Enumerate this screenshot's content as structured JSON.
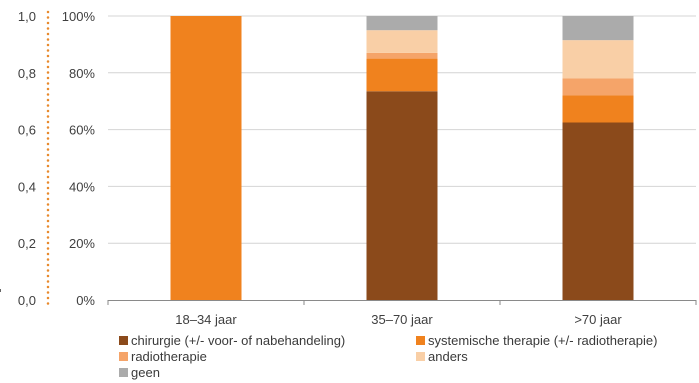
{
  "chart_data": {
    "type": "bar",
    "stacked": true,
    "title": "",
    "xlabel": "",
    "ylabel": "",
    "categories": [
      "18–34 jaar",
      "35–70 jaar",
      ">70 jaar"
    ],
    "series": [
      {
        "name": "chirurgie (+/- voor- of nabehandeling)",
        "color": "#8B4A1B",
        "values": [
          0,
          73.5,
          62.5
        ]
      },
      {
        "name": "systemische therapie (+/- radiotherapie)",
        "color": "#F0821E",
        "values": [
          100,
          11.5,
          9.5
        ]
      },
      {
        "name": "radiotherapie",
        "color": "#F5A469",
        "values": [
          0,
          2,
          6
        ]
      },
      {
        "name": "anders",
        "color": "#F9CFA6",
        "values": [
          0,
          8,
          13.5
        ]
      },
      {
        "name": "geen",
        "color": "#ABABAB",
        "values": [
          0,
          5,
          8.5
        ]
      }
    ],
    "ylim": [
      0,
      100
    ],
    "y_ticks": [
      "0%",
      "20%",
      "40%",
      "60%",
      "80%",
      "100%"
    ],
    "left_axis_ticks": [
      "0,0",
      "0,2",
      "0,4",
      "0,6",
      "0,8",
      "1,0"
    ],
    "grid": true,
    "legend_position": "bottom"
  }
}
